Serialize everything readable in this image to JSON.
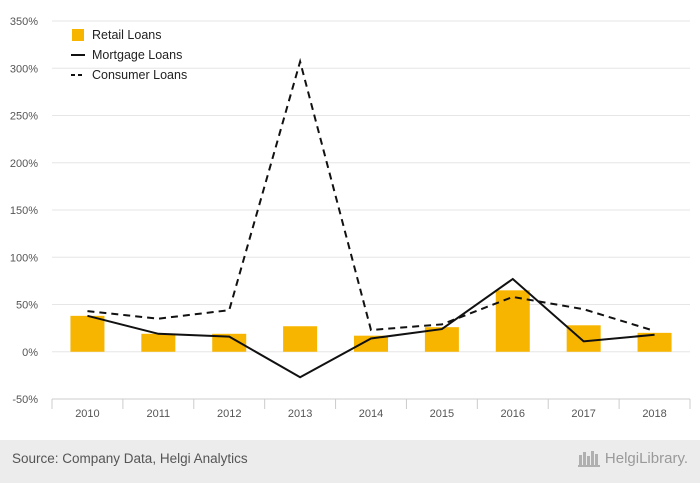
{
  "chart_data": {
    "type": "bar",
    "categories": [
      "2010",
      "2011",
      "2012",
      "2013",
      "2014",
      "2015",
      "2016",
      "2017",
      "2018"
    ],
    "series": [
      {
        "name": "Retail Loans",
        "type": "bar",
        "color": "#f7b500",
        "values": [
          38,
          19,
          19,
          27,
          17,
          26,
          65,
          28,
          20
        ]
      },
      {
        "name": "Mortgage Loans",
        "type": "line",
        "style": "solid",
        "color": "#111111",
        "values": [
          38,
          19,
          16,
          -27,
          14,
          24,
          77,
          11,
          18
        ]
      },
      {
        "name": "Consumer Loans",
        "type": "line",
        "style": "dashed",
        "color": "#111111",
        "values": [
          43,
          35,
          44,
          307,
          23,
          29,
          58,
          45,
          22
        ]
      }
    ],
    "yticks": [
      "-50%",
      "0%",
      "50%",
      "100%",
      "150%",
      "200%",
      "250%",
      "300%",
      "350%"
    ],
    "ylim": [
      -50,
      350
    ],
    "grid": true,
    "legend": "top-left"
  },
  "footer": {
    "source": "Source: Company Data, Helgi Analytics",
    "brand": "HelgiLibrary."
  },
  "colors": {
    "bar": "#f7b500",
    "grid": "#e6e6e6",
    "text": "#555555"
  }
}
